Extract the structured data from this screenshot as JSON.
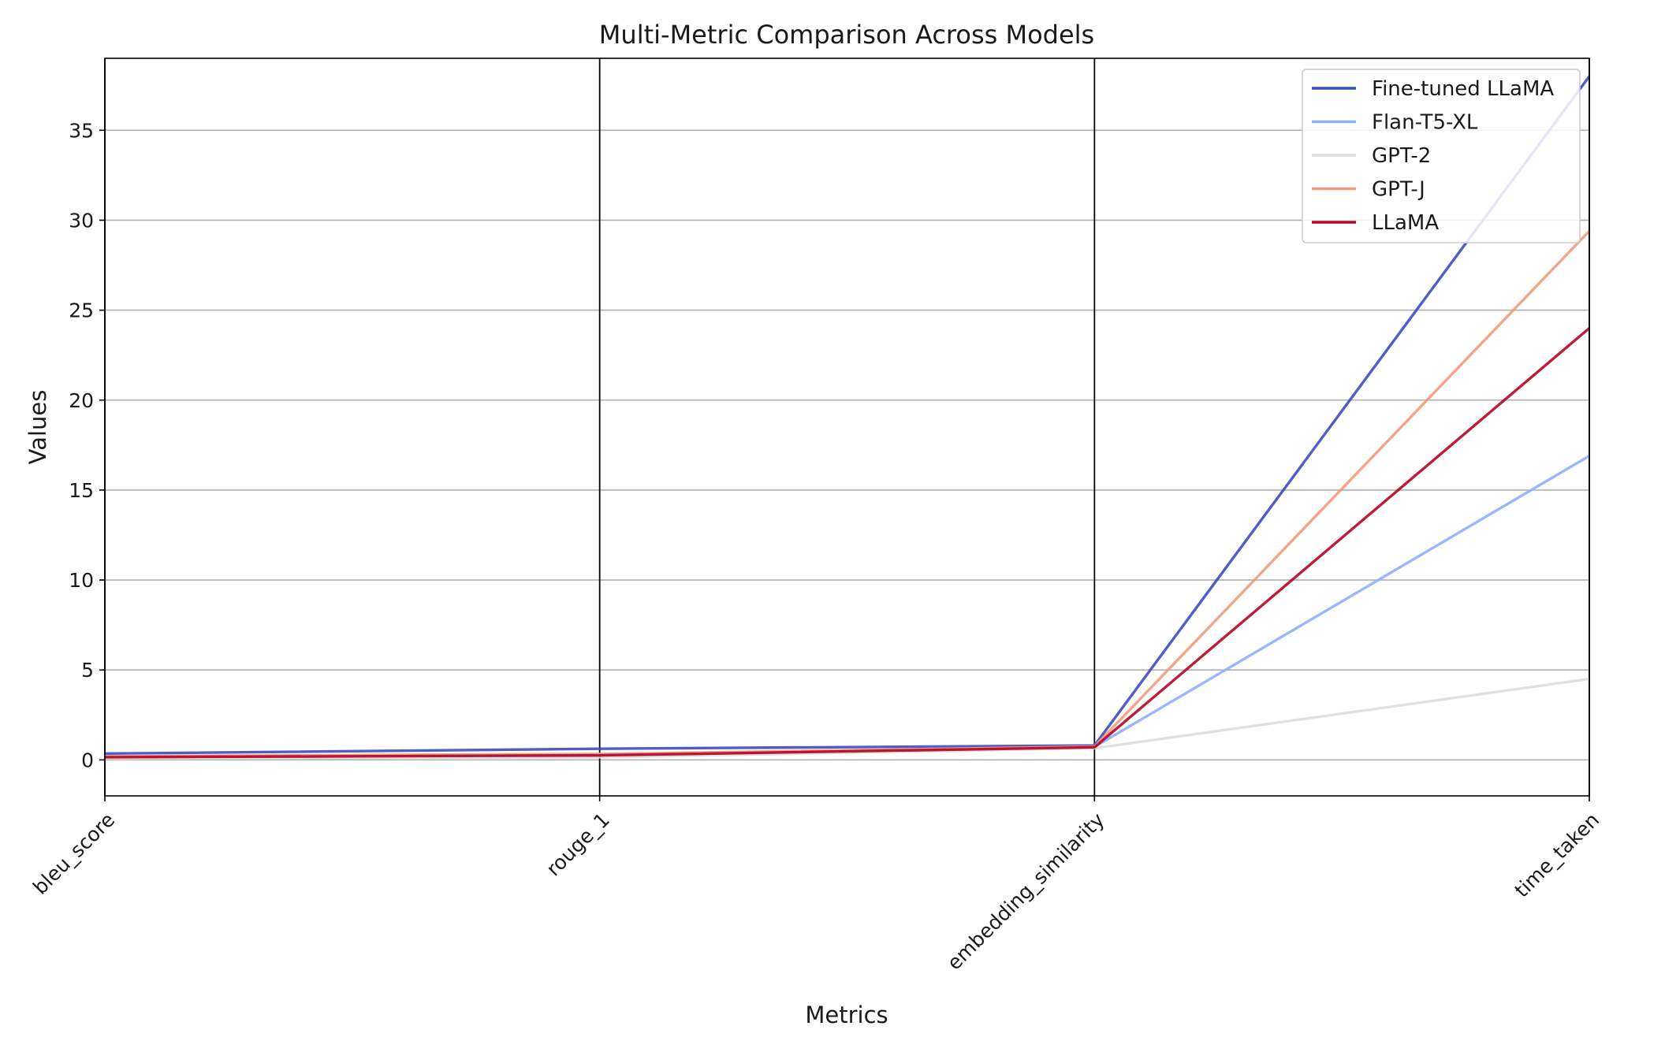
{
  "chart_data": {
    "type": "line",
    "subtype": "parallel-coordinates",
    "title": "Multi-Metric Comparison Across Models",
    "xlabel": "Metrics",
    "ylabel": "Values",
    "categories": [
      "bleu_score",
      "rouge_1",
      "embedding_similarity",
      "time_taken"
    ],
    "ylim": [
      -2,
      39
    ],
    "yticks": [
      0,
      5,
      10,
      15,
      20,
      25,
      30,
      35
    ],
    "grid": "horizontal",
    "legend_position": "top-right",
    "series": [
      {
        "name": "Fine-tuned LLaMA",
        "color": "#3b4cc0",
        "values": [
          0.35,
          0.62,
          0.8,
          38.0
        ]
      },
      {
        "name": "Flan-T5-XL",
        "color": "#8db0fe",
        "values": [
          0.18,
          0.3,
          0.72,
          16.9
        ]
      },
      {
        "name": "GPT-2",
        "color": "#dddddd",
        "values": [
          0.08,
          0.15,
          0.65,
          4.5
        ]
      },
      {
        "name": "GPT-J",
        "color": "#f49a7b",
        "values": [
          0.2,
          0.33,
          0.74,
          29.4
        ]
      },
      {
        "name": "LLaMA",
        "color": "#b40426",
        "values": [
          0.15,
          0.25,
          0.7,
          24.0
        ]
      }
    ]
  }
}
